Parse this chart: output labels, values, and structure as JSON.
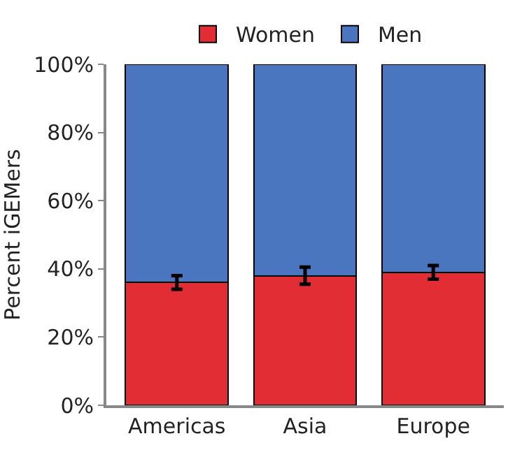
{
  "chart_data": {
    "type": "bar",
    "stacked": true,
    "ylabel": "Percent iGEMers",
    "categories": [
      "Americas",
      "Asia",
      "Europe"
    ],
    "series": [
      {
        "name": "Women",
        "color": "#e32d35",
        "values": [
          36,
          38,
          39
        ],
        "errors": [
          2,
          2.5,
          2
        ]
      },
      {
        "name": "Men",
        "color": "#4a76c0",
        "values": [
          64,
          62,
          61
        ]
      }
    ],
    "ylim": [
      0,
      100
    ],
    "yticks": [
      {
        "value": 0,
        "label": "0%"
      },
      {
        "value": 20,
        "label": "20%"
      },
      {
        "value": 40,
        "label": "40%"
      },
      {
        "value": 60,
        "label": "60%"
      },
      {
        "value": 80,
        "label": "80%"
      },
      {
        "value": 100,
        "label": "100%"
      }
    ],
    "grid": false,
    "legend": "top"
  }
}
